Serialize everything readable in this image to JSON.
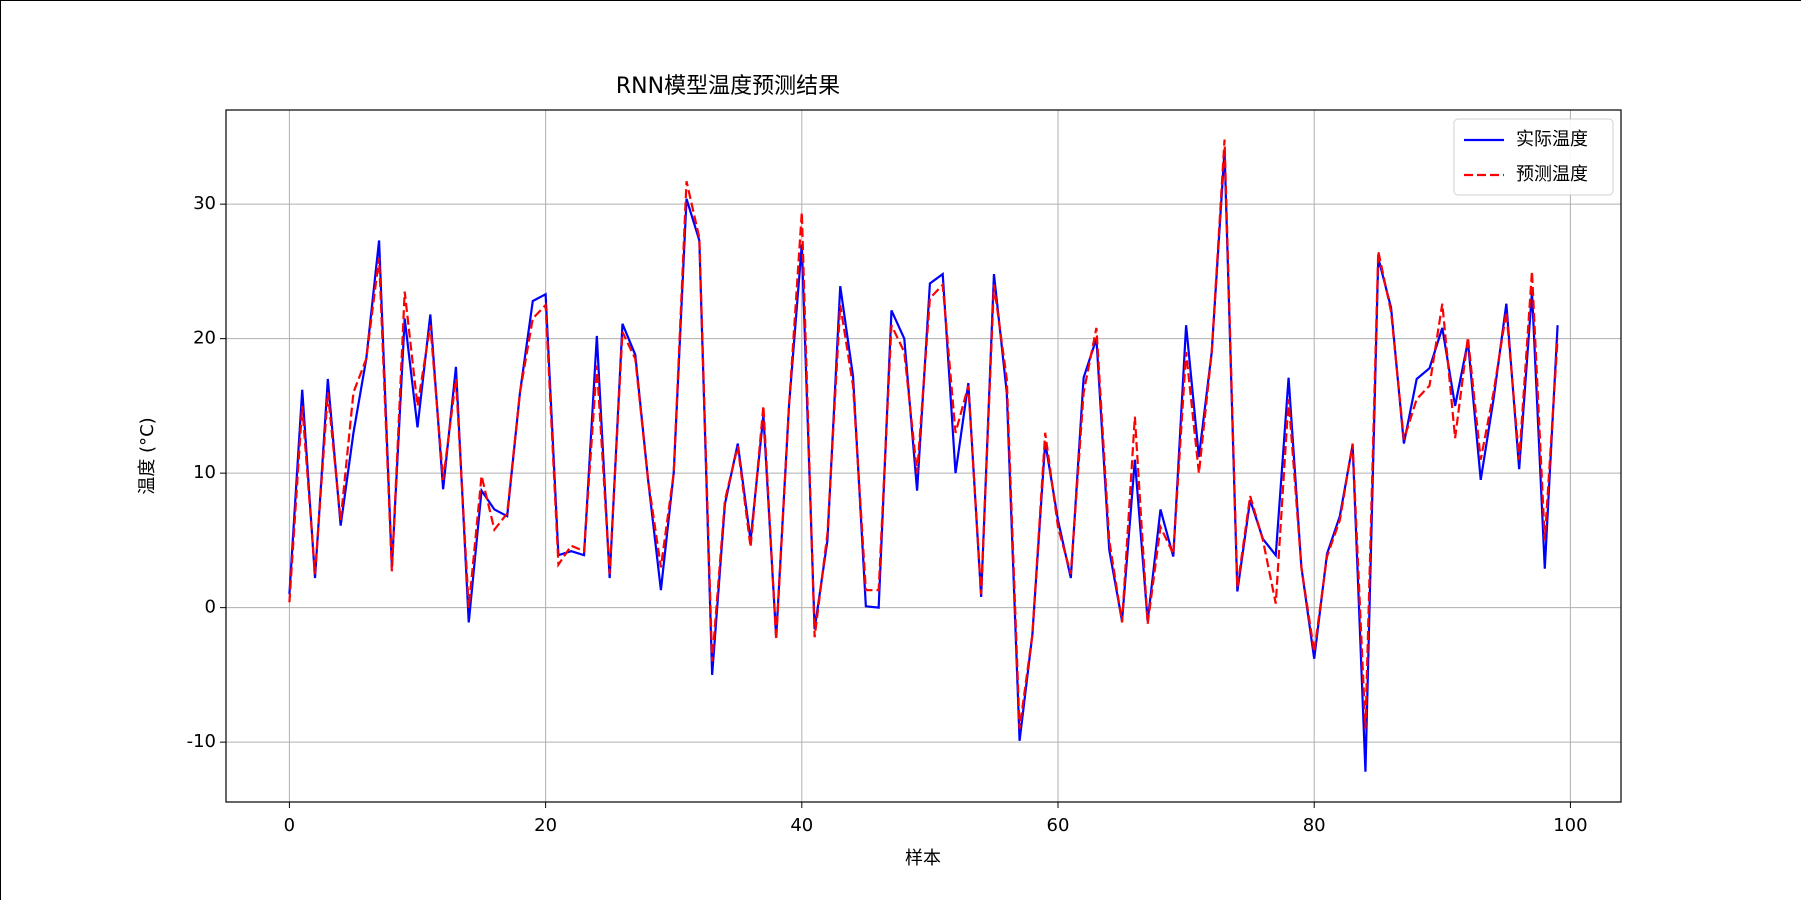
{
  "chart_data": {
    "type": "line",
    "title": "RNN模型温度预测结果",
    "xlabel": "样本",
    "ylabel": "温度 (°C)",
    "x": [
      0,
      1,
      2,
      3,
      4,
      5,
      6,
      7,
      8,
      9,
      10,
      11,
      12,
      13,
      14,
      15,
      16,
      17,
      18,
      19,
      20,
      21,
      22,
      23,
      24,
      25,
      26,
      27,
      28,
      29,
      30,
      31,
      32,
      33,
      34,
      35,
      36,
      37,
      38,
      39,
      40,
      41,
      42,
      43,
      44,
      45,
      46,
      47,
      48,
      49,
      50,
      51,
      52,
      53,
      54,
      55,
      56,
      57,
      58,
      59,
      60,
      61,
      62,
      63,
      64,
      65,
      66,
      67,
      68,
      69,
      70,
      71,
      72,
      73,
      74,
      75,
      76,
      77,
      78,
      79,
      80,
      81,
      82,
      83,
      84,
      85,
      86,
      87,
      88,
      89,
      90,
      91,
      92,
      93,
      94,
      95,
      96,
      97,
      98,
      99
    ],
    "series": [
      {
        "name": "实际温度",
        "color": "#0000ff",
        "dash": "solid",
        "values": [
          1.0,
          16.2,
          2.2,
          17,
          6.1,
          13,
          18.5,
          27.3,
          3,
          21.5,
          13.4,
          21.8,
          8.8,
          17.9,
          -1.1,
          8.7,
          7.3,
          6.8,
          16,
          22.8,
          23.3,
          3.9,
          4.2,
          3.9,
          20.2,
          2.2,
          21.1,
          18.8,
          9.5,
          1.3,
          10,
          30.4,
          27.3,
          -5,
          7.7,
          12.2,
          5,
          14.3,
          -2.2,
          15,
          27,
          -1.6,
          5,
          23.9,
          17.2,
          0.1,
          0,
          22.1,
          20,
          8.7,
          24.1,
          24.8,
          10,
          16.7,
          0.8,
          24.8,
          16,
          -9.9,
          -2,
          12.3,
          6.5,
          2.2,
          17.1,
          20,
          4.3,
          -1,
          11,
          -1,
          7.3,
          3.8,
          21,
          11.2,
          19,
          34,
          1.2,
          8,
          5.1,
          3.9,
          17.1,
          3,
          -3.8,
          4,
          6.8,
          12.1,
          -12.2,
          26,
          22.3,
          12.2,
          17,
          17.8,
          20.8,
          15,
          19.8,
          9.5,
          15.5,
          22.6,
          10.3,
          23.5,
          2.9,
          21
        ]
      },
      {
        "name": "预测温度",
        "color": "#ff0000",
        "dash": "dashed",
        "values": [
          0.4,
          15,
          2.5,
          16,
          6.5,
          16,
          18.5,
          26,
          2.7,
          23.5,
          15,
          21,
          9.5,
          17,
          0,
          9.8,
          5.8,
          7,
          16,
          21.5,
          22.5,
          3.2,
          4.6,
          4.2,
          18,
          2.5,
          20.5,
          18.5,
          9.5,
          3,
          10,
          31.7,
          27.5,
          -4,
          8,
          12,
          4.5,
          15,
          -2.4,
          15,
          29.4,
          -2.2,
          5.5,
          22.5,
          16.5,
          1.3,
          1.3,
          21,
          19,
          10,
          23,
          24,
          13,
          16.5,
          1,
          24,
          17,
          -9,
          -2,
          13,
          6,
          2.5,
          16,
          20.8,
          5,
          -1.1,
          14.2,
          -1.2,
          6,
          4,
          19,
          10,
          19,
          34.8,
          1.5,
          8.3,
          5,
          0.3,
          15.5,
          3,
          -3.3,
          3.8,
          6.5,
          12.2,
          -9,
          26.5,
          22,
          12.5,
          15.5,
          16.5,
          22.6,
          12.6,
          20.1,
          11,
          16,
          22,
          11,
          25,
          5,
          20
        ]
      }
    ],
    "xlim": [
      -4.95,
      103.95
    ],
    "ylim": [
      -14.45,
      37.0
    ],
    "xticks": [
      0,
      20,
      40,
      60,
      80,
      100
    ],
    "yticks": [
      -10,
      0,
      10,
      20,
      30
    ],
    "grid": true,
    "legend": "upper right"
  }
}
